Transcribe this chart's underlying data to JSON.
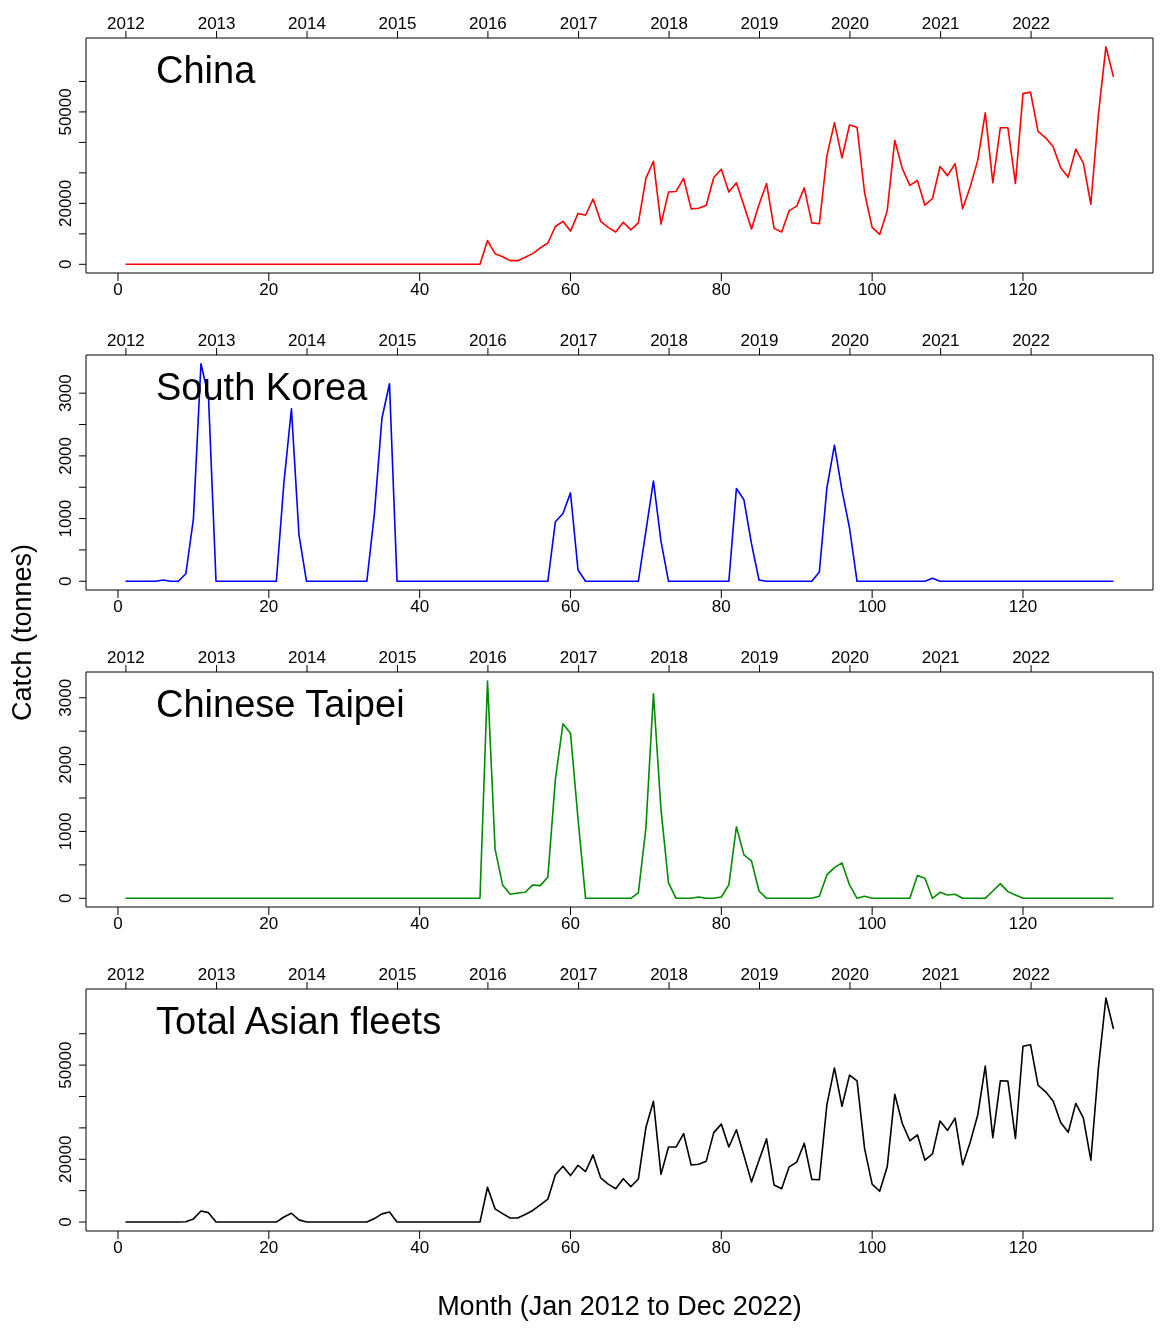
{
  "chart_data": [
    {
      "type": "line",
      "title": "China",
      "color": "#ff0000",
      "x": [
        1,
        2,
        3,
        4,
        5,
        6,
        7,
        8,
        9,
        10,
        11,
        12,
        13,
        14,
        15,
        16,
        17,
        18,
        19,
        20,
        21,
        22,
        23,
        24,
        25,
        26,
        27,
        28,
        29,
        30,
        31,
        32,
        33,
        34,
        35,
        36,
        37,
        38,
        39,
        40,
        41,
        42,
        43,
        44,
        45,
        46,
        47,
        48,
        49,
        50,
        51,
        52,
        53,
        54,
        55,
        56,
        57,
        58,
        59,
        60,
        61,
        62,
        63,
        64,
        65,
        66,
        67,
        68,
        69,
        70,
        71,
        72,
        73,
        74,
        75,
        76,
        77,
        78,
        79,
        80,
        81,
        82,
        83,
        84,
        85,
        86,
        87,
        88,
        89,
        90,
        91,
        92,
        93,
        94,
        95,
        96,
        97,
        98,
        99,
        100,
        101,
        102,
        103,
        104,
        105,
        106,
        107,
        108,
        109,
        110,
        111,
        112,
        113,
        114,
        115,
        116,
        117,
        118,
        119,
        120,
        121,
        122,
        123,
        124,
        125,
        126,
        127,
        128,
        129,
        130,
        131,
        132
      ],
      "values": [
        0,
        0,
        0,
        0,
        0,
        0,
        0,
        0,
        0,
        0,
        0,
        0,
        0,
        0,
        0,
        0,
        0,
        0,
        0,
        0,
        0,
        0,
        0,
        0,
        0,
        0,
        0,
        0,
        0,
        0,
        0,
        0,
        0,
        0,
        0,
        0,
        0,
        0,
        0,
        0,
        0,
        0,
        0,
        0,
        0,
        0,
        0,
        0,
        7800,
        3500,
        2500,
        1200,
        1200,
        2300,
        3500,
        5400,
        7000,
        12400,
        14100,
        10900,
        16700,
        16100,
        21400,
        14100,
        12100,
        10600,
        13800,
        11300,
        13600,
        28200,
        33800,
        13200,
        23700,
        23900,
        28200,
        18200,
        18400,
        19400,
        28500,
        31200,
        23700,
        26800,
        19300,
        11600,
        19600,
        26500,
        11800,
        10600,
        17600,
        19100,
        25100,
        13600,
        13300,
        35600,
        46500,
        34900,
        45700,
        45000,
        23400,
        12100,
        9800,
        17600,
        40700,
        31400,
        25900,
        27500,
        19400,
        21600,
        32100,
        29100,
        33000,
        18200,
        25400,
        34100,
        49700,
        26800,
        44800,
        44800,
        26500,
        56000,
        56500,
        43600,
        41500,
        38600,
        31700,
        28600,
        37800,
        33200,
        19700,
        49100,
        71400,
        61500
      ],
      "xlim": [
        -4.24,
        137.24
      ],
      "xticks": [
        0,
        20,
        40,
        60,
        80,
        100,
        120
      ],
      "x2lim": [
        "2011-07-24",
        "2023-05-08"
      ],
      "x2ticks": [
        "2012",
        "2013",
        "2014",
        "2015",
        "2016",
        "2017",
        "2018",
        "2019",
        "2020",
        "2021",
        "2022"
      ],
      "ylim": [
        -2850,
        74250
      ],
      "yticks": [
        0,
        {
          "value": 10000,
          "label": null
        },
        20000,
        {
          "value": 30000,
          "label": null
        },
        {
          "value": 40000,
          "label": null
        },
        50000,
        {
          "value": 60000,
          "label": null
        }
      ]
    },
    {
      "type": "line",
      "title": "South Korea",
      "color": "#0000ff",
      "ylabel": "Catch (tonnes)",
      "x": [
        1,
        2,
        3,
        4,
        5,
        6,
        7,
        8,
        9,
        10,
        11,
        12,
        13,
        14,
        15,
        16,
        17,
        18,
        19,
        20,
        21,
        22,
        23,
        24,
        25,
        26,
        27,
        28,
        29,
        30,
        31,
        32,
        33,
        34,
        35,
        36,
        37,
        38,
        39,
        40,
        41,
        42,
        43,
        44,
        45,
        46,
        47,
        48,
        49,
        50,
        51,
        52,
        53,
        54,
        55,
        56,
        57,
        58,
        59,
        60,
        61,
        62,
        63,
        64,
        65,
        66,
        67,
        68,
        69,
        70,
        71,
        72,
        73,
        74,
        75,
        76,
        77,
        78,
        79,
        80,
        81,
        82,
        83,
        84,
        85,
        86,
        87,
        88,
        89,
        90,
        91,
        92,
        93,
        94,
        95,
        96,
        97,
        98,
        99,
        100,
        101,
        102,
        103,
        104,
        105,
        106,
        107,
        108,
        109,
        110,
        111,
        112,
        113,
        114,
        115,
        116,
        117,
        118,
        119,
        120,
        121,
        122,
        123,
        124,
        125,
        126,
        127,
        128,
        129,
        130,
        131,
        132
      ],
      "values": [
        0,
        0,
        0,
        0,
        0,
        20,
        0,
        0,
        120,
        990,
        3470,
        2950,
        0,
        0,
        0,
        0,
        0,
        0,
        0,
        0,
        0,
        1570,
        2750,
        740,
        0,
        0,
        0,
        0,
        0,
        0,
        0,
        0,
        0,
        1080,
        2600,
        3150,
        0,
        0,
        0,
        0,
        0,
        0,
        0,
        0,
        0,
        0,
        0,
        0,
        0,
        0,
        0,
        0,
        0,
        0,
        0,
        0,
        0,
        950,
        1080,
        1410,
        180,
        0,
        0,
        0,
        0,
        0,
        0,
        0,
        0,
        800,
        1600,
        640,
        0,
        0,
        0,
        0,
        0,
        0,
        0,
        0,
        0,
        1480,
        1300,
        600,
        20,
        0,
        0,
        0,
        0,
        0,
        0,
        0,
        150,
        1490,
        2170,
        1450,
        850,
        0,
        0,
        0,
        0,
        0,
        0,
        0,
        0,
        0,
        0,
        50,
        0,
        0,
        0,
        0,
        0,
        0,
        0,
        0,
        0,
        0,
        0,
        0,
        0,
        0,
        0,
        0,
        0,
        0,
        0,
        0,
        0,
        0,
        0,
        0
      ],
      "xlim": [
        -4.24,
        137.24
      ],
      "xticks": [
        0,
        20,
        40,
        60,
        80,
        100,
        120
      ],
      "x2lim": [
        "2011-07-24",
        "2023-05-08"
      ],
      "x2ticks": [
        "2012",
        "2013",
        "2014",
        "2015",
        "2016",
        "2017",
        "2018",
        "2019",
        "2020",
        "2021",
        "2022"
      ],
      "ylim": [
        -139,
        3609
      ],
      "yticks": [
        0,
        {
          "value": 500,
          "label": null
        },
        1000,
        {
          "value": 1500,
          "label": null
        },
        2000,
        {
          "value": 2500,
          "label": null
        },
        3000
      ]
    },
    {
      "type": "line",
      "title": "Chinese Taipei",
      "color": "#008b00",
      "x": [
        1,
        2,
        3,
        4,
        5,
        6,
        7,
        8,
        9,
        10,
        11,
        12,
        13,
        14,
        15,
        16,
        17,
        18,
        19,
        20,
        21,
        22,
        23,
        24,
        25,
        26,
        27,
        28,
        29,
        30,
        31,
        32,
        33,
        34,
        35,
        36,
        37,
        38,
        39,
        40,
        41,
        42,
        43,
        44,
        45,
        46,
        47,
        48,
        49,
        50,
        51,
        52,
        53,
        54,
        55,
        56,
        57,
        58,
        59,
        60,
        61,
        62,
        63,
        64,
        65,
        66,
        67,
        68,
        69,
        70,
        71,
        72,
        73,
        74,
        75,
        76,
        77,
        78,
        79,
        80,
        81,
        82,
        83,
        84,
        85,
        86,
        87,
        88,
        89,
        90,
        91,
        92,
        93,
        94,
        95,
        96,
        97,
        98,
        99,
        100,
        101,
        102,
        103,
        104,
        105,
        106,
        107,
        108,
        109,
        110,
        111,
        112,
        113,
        114,
        115,
        116,
        117,
        118,
        119,
        120,
        121,
        122,
        123,
        124,
        125,
        126,
        127,
        128,
        129,
        130,
        131,
        132
      ],
      "values": [
        0,
        0,
        0,
        0,
        0,
        0,
        0,
        0,
        0,
        0,
        0,
        0,
        0,
        0,
        0,
        0,
        0,
        0,
        0,
        0,
        0,
        0,
        0,
        0,
        0,
        0,
        0,
        0,
        0,
        0,
        0,
        0,
        0,
        0,
        0,
        0,
        0,
        0,
        0,
        0,
        0,
        0,
        0,
        0,
        0,
        0,
        0,
        0,
        3250,
        740,
        200,
        60,
        80,
        90,
        200,
        190,
        320,
        1780,
        2610,
        2470,
        1190,
        0,
        0,
        0,
        0,
        0,
        0,
        0,
        80,
        1050,
        3060,
        1330,
        230,
        0,
        0,
        0,
        20,
        0,
        0,
        20,
        200,
        1070,
        650,
        560,
        110,
        0,
        0,
        0,
        0,
        0,
        0,
        0,
        30,
        350,
        460,
        530,
        200,
        0,
        30,
        0,
        0,
        0,
        0,
        0,
        0,
        340,
        300,
        0,
        90,
        50,
        60,
        0,
        0,
        0,
        0,
        110,
        220,
        100,
        50,
        0,
        0,
        0,
        0,
        0,
        0,
        0,
        0,
        0,
        0,
        0,
        0,
        0
      ],
      "xlim": [
        -4.24,
        137.24
      ],
      "xticks": [
        0,
        20,
        40,
        60,
        80,
        100,
        120
      ],
      "x2lim": [
        "2011-07-24",
        "2023-05-08"
      ],
      "x2ticks": [
        "2012",
        "2013",
        "2014",
        "2015",
        "2016",
        "2017",
        "2018",
        "2019",
        "2020",
        "2021",
        "2022"
      ],
      "ylim": [
        -130,
        3385
      ],
      "yticks": [
        0,
        {
          "value": 500,
          "label": null
        },
        1000,
        {
          "value": 1500,
          "label": null
        },
        2000,
        {
          "value": 2500,
          "label": null
        },
        3000
      ]
    },
    {
      "type": "line",
      "title": "Total Asian fleets",
      "color": "#000000",
      "xlabel": "Month (Jan 2012 to Dec 2022)",
      "x": [
        1,
        2,
        3,
        4,
        5,
        6,
        7,
        8,
        9,
        10,
        11,
        12,
        13,
        14,
        15,
        16,
        17,
        18,
        19,
        20,
        21,
        22,
        23,
        24,
        25,
        26,
        27,
        28,
        29,
        30,
        31,
        32,
        33,
        34,
        35,
        36,
        37,
        38,
        39,
        40,
        41,
        42,
        43,
        44,
        45,
        46,
        47,
        48,
        49,
        50,
        51,
        52,
        53,
        54,
        55,
        56,
        57,
        58,
        59,
        60,
        61,
        62,
        63,
        64,
        65,
        66,
        67,
        68,
        69,
        70,
        71,
        72,
        73,
        74,
        75,
        76,
        77,
        78,
        79,
        80,
        81,
        82,
        83,
        84,
        85,
        86,
        87,
        88,
        89,
        90,
        91,
        92,
        93,
        94,
        95,
        96,
        97,
        98,
        99,
        100,
        101,
        102,
        103,
        104,
        105,
        106,
        107,
        108,
        109,
        110,
        111,
        112,
        113,
        114,
        115,
        116,
        117,
        118,
        119,
        120,
        121,
        122,
        123,
        124,
        125,
        126,
        127,
        128,
        129,
        130,
        131,
        132
      ],
      "values": [
        0,
        0,
        0,
        0,
        0,
        0,
        0,
        0,
        100,
        1000,
        3500,
        3000,
        0,
        0,
        0,
        0,
        0,
        0,
        0,
        0,
        0,
        1600,
        2800,
        700,
        0,
        0,
        0,
        0,
        0,
        0,
        0,
        0,
        0,
        1100,
        2600,
        3200,
        0,
        0,
        0,
        0,
        0,
        0,
        0,
        0,
        0,
        0,
        0,
        0,
        11100,
        4200,
        2700,
        1300,
        1300,
        2400,
        3700,
        5500,
        7300,
        15100,
        17800,
        14800,
        18100,
        16100,
        21400,
        14100,
        12100,
        10600,
        13800,
        11300,
        13700,
        30100,
        38500,
        15200,
        23900,
        23900,
        28200,
        18200,
        18400,
        19400,
        28500,
        31200,
        23900,
        29400,
        21200,
        12800,
        19700,
        26500,
        11800,
        10600,
        17600,
        19100,
        25100,
        13600,
        13500,
        37400,
        49100,
        36900,
        46800,
        45000,
        23400,
        12100,
        9800,
        17600,
        40700,
        31400,
        25900,
        27800,
        19700,
        21700,
        32200,
        29200,
        33100,
        18200,
        25400,
        34100,
        49700,
        26900,
        45000,
        44900,
        26600,
        56000,
        56500,
        43600,
        41500,
        38600,
        31700,
        28600,
        37800,
        33200,
        19700,
        49100,
        71400,
        61500
      ],
      "xlim": [
        -4.24,
        137.24
      ],
      "xticks": [
        0,
        20,
        40,
        60,
        80,
        100,
        120
      ],
      "x2lim": [
        "2011-07-24",
        "2023-05-08"
      ],
      "x2ticks": [
        "2012",
        "2013",
        "2014",
        "2015",
        "2016",
        "2017",
        "2018",
        "2019",
        "2020",
        "2021",
        "2022"
      ],
      "ylim": [
        -2850,
        74250
      ],
      "yticks": [
        0,
        {
          "value": 10000,
          "label": null
        },
        20000,
        {
          "value": 30000,
          "label": null
        },
        {
          "value": 40000,
          "label": null
        },
        50000,
        {
          "value": 60000,
          "label": null
        }
      ]
    }
  ]
}
